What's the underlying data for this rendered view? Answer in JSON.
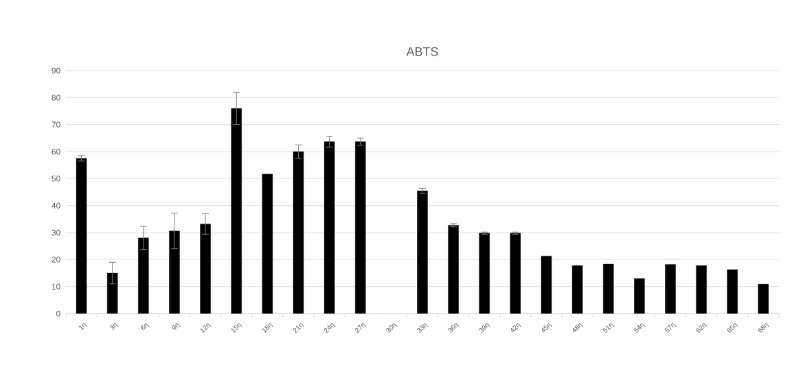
{
  "chart_data": {
    "type": "bar",
    "title": "ABTS",
    "categories": [
      "1η",
      "3η",
      "6η",
      "9η",
      "12η",
      "15η",
      "18η",
      "21η",
      "24η",
      "27η",
      "30η",
      "33η",
      "36η",
      "39η",
      "42η",
      "45η",
      "48η",
      "51η",
      "54η",
      "57η",
      "62η",
      "65η",
      "68η"
    ],
    "values": [
      57.5,
      15,
      28,
      30.6,
      33.2,
      76,
      51.7,
      60,
      63.7,
      63.7,
      null,
      45.5,
      32.7,
      29.8,
      29.8,
      21.3,
      17.8,
      18.3,
      13,
      18.2,
      17.8,
      16.3,
      10.9
    ],
    "errors": [
      1,
      4,
      4.3,
      6.6,
      3.8,
      6,
      null,
      2.5,
      2,
      1.3,
      null,
      0.9,
      0.6,
      0.4,
      0.4,
      null,
      null,
      null,
      null,
      null,
      null,
      null,
      null
    ],
    "color": "#000000",
    "ylim": [
      0,
      90
    ],
    "yticks": [
      0,
      10,
      20,
      30,
      40,
      50,
      60,
      70,
      80,
      90
    ],
    "grid": "y"
  }
}
